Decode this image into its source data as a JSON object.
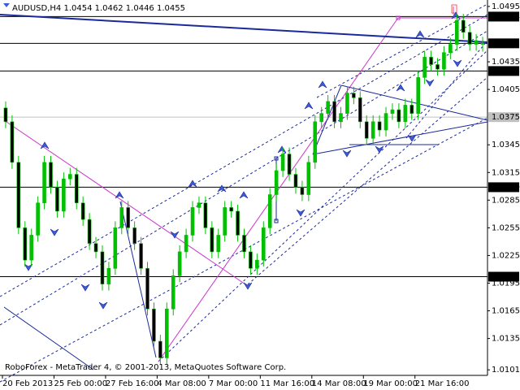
{
  "chart_data": {
    "type": "candlestick",
    "title": "AUDUSD,H4  1.0454 1.0462 1.0446 1.0455",
    "footer": "RoboForex - MetaTrader 4, © 2001-2013, MetaQuotes Software Corp.",
    "up_color": "#00c000",
    "down_color": "#000000",
    "ylim": [
      1.0095,
      1.0502
    ],
    "yticks": [
      1.0495,
      1.0435,
      1.0405,
      1.0345,
      1.0315,
      1.0285,
      1.0255,
      1.0225,
      1.0195,
      1.0165,
      1.0135,
      1.0101
    ],
    "levels": [
      1.0484,
      1.0455,
      1.0425,
      1.0375,
      1.0299,
      1.0202
    ],
    "level_colors": [
      "#000000",
      "#000000",
      "#000000",
      "#c0c0c0",
      "#000000",
      "#000000"
    ],
    "xlim": [
      0,
      75
    ],
    "xticks": [
      {
        "value": 0,
        "label": "20 Feb 2013"
      },
      {
        "value": 8,
        "label": "25 Feb 00:00"
      },
      {
        "value": 16,
        "label": "27 Feb 16:00"
      },
      {
        "value": 24,
        "label": "4 Mar 08:00"
      },
      {
        "value": 32,
        "label": "7 Mar 00:00"
      },
      {
        "value": 40,
        "label": "11 Mar 16:00"
      },
      {
        "value": 48,
        "label": "14 Mar 08:00"
      },
      {
        "value": 56,
        "label": "19 Mar 00:00"
      },
      {
        "value": 64,
        "label": "21 Mar 16:00"
      }
    ],
    "open": [
      1.0385,
      1.037,
      1.0326,
      1.0255,
      1.022,
      1.0247,
      1.0282,
      1.0326,
      1.0299,
      1.0273,
      1.0308,
      1.0313,
      1.0282,
      1.0264,
      1.0238,
      1.0229,
      1.0194,
      1.0211,
      1.0255,
      1.0277,
      1.0255,
      1.0238,
      1.0211,
      1.0167,
      1.0132,
      1.0114,
      1.0167,
      1.0203,
      1.0229,
      1.0247,
      1.0277,
      1.0282,
      1.0255,
      1.0229,
      1.0247,
      1.0277,
      1.0273,
      1.0247,
      1.0229,
      1.0211,
      1.022,
      1.0255,
      1.0291,
      1.0317,
      1.0335,
      1.0313,
      1.0299,
      1.0291,
      1.0326,
      1.037,
      1.0379,
      1.0392,
      1.037,
      1.0379,
      1.0401,
      1.0396,
      1.037,
      1.0352,
      1.037,
      1.0361,
      1.0379,
      1.0383,
      1.037,
      1.0388,
      1.0379,
      1.0418,
      1.044,
      1.0432,
      1.0427,
      1.0445,
      1.0454,
      1.048,
      1.0467,
      1.0454,
      1.0454
    ],
    "high": [
      1.0392,
      1.0377,
      1.0333,
      1.0262,
      1.0254,
      1.0289,
      1.0333,
      1.0333,
      1.0306,
      1.0315,
      1.032,
      1.032,
      1.0289,
      1.0271,
      1.0245,
      1.0236,
      1.0218,
      1.0262,
      1.0284,
      1.0284,
      1.0262,
      1.0245,
      1.0218,
      1.0174,
      1.0139,
      1.0174,
      1.021,
      1.0236,
      1.0254,
      1.0284,
      1.0289,
      1.0289,
      1.0262,
      1.0254,
      1.0284,
      1.0284,
      1.028,
      1.0254,
      1.0236,
      1.0227,
      1.0262,
      1.0298,
      1.0324,
      1.0342,
      1.0342,
      1.032,
      1.0306,
      1.0333,
      1.0377,
      1.0386,
      1.0399,
      1.0399,
      1.0386,
      1.0408,
      1.0408,
      1.0403,
      1.0377,
      1.0377,
      1.0377,
      1.0386,
      1.039,
      1.039,
      1.0395,
      1.0395,
      1.0425,
      1.0447,
      1.0447,
      1.0439,
      1.0452,
      1.0461,
      1.0487,
      1.0487,
      1.0474,
      1.0465,
      1.0462
    ],
    "low": [
      1.0363,
      1.0319,
      1.0248,
      1.0213,
      1.0213,
      1.024,
      1.0275,
      1.0292,
      1.0266,
      1.0266,
      1.0301,
      1.0275,
      1.0257,
      1.0231,
      1.0222,
      1.0187,
      1.0187,
      1.0204,
      1.0248,
      1.0248,
      1.0231,
      1.0204,
      1.016,
      1.0125,
      1.0107,
      1.0107,
      1.016,
      1.0196,
      1.0222,
      1.024,
      1.027,
      1.0248,
      1.0222,
      1.0222,
      1.024,
      1.0266,
      1.024,
      1.0222,
      1.0204,
      1.0204,
      1.0213,
      1.0248,
      1.0284,
      1.031,
      1.0306,
      1.0292,
      1.0284,
      1.0284,
      1.0319,
      1.0363,
      1.0372,
      1.0363,
      1.0363,
      1.0372,
      1.0389,
      1.0363,
      1.0345,
      1.0345,
      1.0354,
      1.0354,
      1.0372,
      1.0363,
      1.0363,
      1.0372,
      1.0372,
      1.0411,
      1.0425,
      1.042,
      1.042,
      1.0438,
      1.0447,
      1.046,
      1.0447,
      1.0447,
      1.0446
    ],
    "close": [
      1.037,
      1.0326,
      1.0255,
      1.022,
      1.0247,
      1.0282,
      1.0326,
      1.0299,
      1.0273,
      1.0308,
      1.0313,
      1.0282,
      1.0264,
      1.0238,
      1.0229,
      1.0194,
      1.0211,
      1.0255,
      1.0277,
      1.0255,
      1.0238,
      1.0211,
      1.0167,
      1.0132,
      1.0114,
      1.0167,
      1.0203,
      1.0229,
      1.0247,
      1.0277,
      1.0282,
      1.0255,
      1.0229,
      1.0247,
      1.0277,
      1.0273,
      1.0247,
      1.0229,
      1.0211,
      1.022,
      1.0255,
      1.0291,
      1.0317,
      1.0335,
      1.0313,
      1.0299,
      1.0291,
      1.0326,
      1.037,
      1.0379,
      1.0392,
      1.037,
      1.0379,
      1.0401,
      1.0396,
      1.037,
      1.0352,
      1.037,
      1.0361,
      1.0379,
      1.0383,
      1.037,
      1.0388,
      1.0379,
      1.0418,
      1.044,
      1.0432,
      1.0427,
      1.0445,
      1.0454,
      1.048,
      1.0467,
      1.0454,
      1.0458,
      1.0455
    ]
  }
}
